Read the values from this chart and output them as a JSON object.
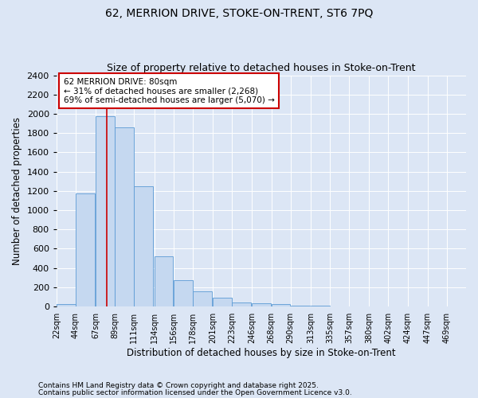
{
  "title1": "62, MERRION DRIVE, STOKE-ON-TRENT, ST6 7PQ",
  "title2": "Size of property relative to detached houses in Stoke-on-Trent",
  "xlabel": "Distribution of detached houses by size in Stoke-on-Trent",
  "ylabel": "Number of detached properties",
  "bin_labels": [
    "22sqm",
    "44sqm",
    "67sqm",
    "89sqm",
    "111sqm",
    "134sqm",
    "156sqm",
    "178sqm",
    "201sqm",
    "223sqm",
    "246sqm",
    "268sqm",
    "290sqm",
    "313sqm",
    "335sqm",
    "357sqm",
    "380sqm",
    "402sqm",
    "424sqm",
    "447sqm",
    "469sqm"
  ],
  "bin_starts": [
    22,
    44,
    67,
    89,
    111,
    134,
    156,
    178,
    201,
    223,
    246,
    268,
    290,
    313,
    335,
    357,
    380,
    402,
    424,
    447,
    469
  ],
  "bar_heights": [
    25,
    1175,
    1975,
    1860,
    1250,
    520,
    275,
    155,
    90,
    45,
    35,
    28,
    10,
    8,
    4,
    2,
    2,
    1,
    1,
    1,
    0
  ],
  "bar_color": "#c5d8f0",
  "bar_edge_color": "#5b9bd5",
  "bg_color": "#dce6f5",
  "grid_color": "#ffffff",
  "property_line_x": 80,
  "property_line_color": "#cc0000",
  "annotation_line1": "62 MERRION DRIVE: 80sqm",
  "annotation_line2": "← 31% of detached houses are smaller (2,268)",
  "annotation_line3": "69% of semi-detached houses are larger (5,070) →",
  "annotation_box_color": "#cc0000",
  "footer1": "Contains HM Land Registry data © Crown copyright and database right 2025.",
  "footer2": "Contains public sector information licensed under the Open Government Licence v3.0.",
  "ylim": [
    0,
    2400
  ],
  "yticks": [
    0,
    200,
    400,
    600,
    800,
    1000,
    1200,
    1400,
    1600,
    1800,
    2000,
    2200,
    2400
  ]
}
